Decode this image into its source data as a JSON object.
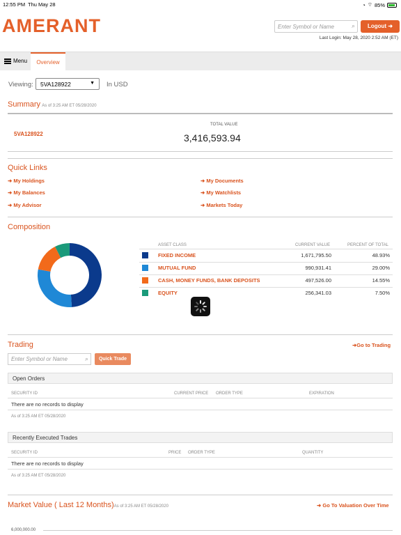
{
  "status_bar": {
    "time": "12:55 PM",
    "date": "Thu May 28",
    "battery": "85%"
  },
  "header": {
    "logo": "AMERANT",
    "search_placeholder": "Enter Symbol or Name",
    "logout_label": "Logout",
    "last_login": "Last Login: May 28, 2020 2:52 AM (ET)"
  },
  "nav": {
    "menu_label": "Menu",
    "tab_overview": "Overview"
  },
  "viewing": {
    "label": "Viewing:",
    "account": "5VA128922",
    "currency": "In USD"
  },
  "summary": {
    "title": "Summary",
    "asof": "As of 3:25 AM ET 05/28/2020",
    "account": "5VA128922",
    "total_value_label": "TOTAL VALUE",
    "total_value": "3,416,593.94"
  },
  "quick_links": {
    "title": "Quick Links",
    "left": [
      "My Holdings",
      "My Balances",
      "My Advisor"
    ],
    "right": [
      "My Documents",
      "My Watchlists",
      "Markets Today"
    ]
  },
  "composition": {
    "title": "Composition",
    "headers": {
      "asset_class": "ASSET CLASS",
      "current_value": "CURRENT VALUE",
      "percent": "PERCENT OF TOTAL"
    },
    "rows": [
      {
        "name": "FIXED INCOME",
        "value": "1,671,795.50",
        "percent": "48.93%",
        "color": "#0b3a8c",
        "fraction": 0.4893
      },
      {
        "name": "MUTUAL FUND",
        "value": "990,931.41",
        "percent": "29.00%",
        "color": "#1f88d6",
        "fraction": 0.29
      },
      {
        "name": "CASH, MONEY FUNDS, BANK DEPOSITS",
        "value": "497,526.00",
        "percent": "14.55%",
        "color": "#f26a1b",
        "fraction": 0.1455
      },
      {
        "name": "EQUITY",
        "value": "256,341.03",
        "percent": "7.50%",
        "color": "#1a9a7a",
        "fraction": 0.075
      }
    ]
  },
  "trading": {
    "title": "Trading",
    "go_label": "Go to Trading",
    "search_placeholder": "Enter Symbol or Name",
    "quick_trade_label": "Quick Trade",
    "open_orders": {
      "title": "Open Orders",
      "headers": {
        "security": "SECURITY ID",
        "price": "CURRENT PRICE",
        "order_type": "ORDER TYPE",
        "expiration": "EXPIRATION"
      },
      "empty": "There are no records to display",
      "asof": "As of 3:25 AM ET 05/28/2020"
    },
    "executed": {
      "title": "Recently Executed Trades",
      "headers": {
        "security": "SECURITY ID",
        "price": "PRICE",
        "order_type": "ORDER TYPE",
        "quantity": "QUANTITY"
      },
      "empty": "There are no records to display",
      "asof": "As of 3:25 AM ET 05/28/2020"
    }
  },
  "market_value": {
    "title": "Market Value ( Last 12 Months)",
    "asof": "As of 3:25 AM ET 05/28/2020",
    "go_label": "Go To Valuation Over Time",
    "axis_top": "6,000,000.00"
  }
}
